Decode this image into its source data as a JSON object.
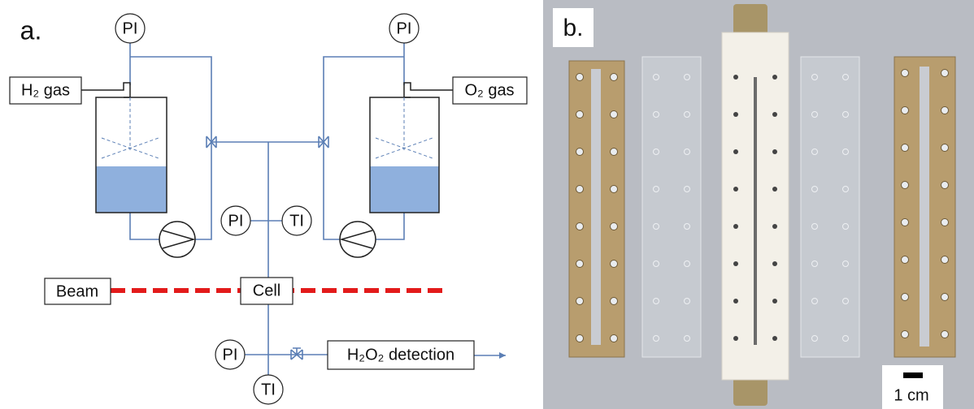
{
  "panel_a": {
    "label": "a.",
    "h2_gas": "H₂ gas",
    "o2_gas": "O₂ gas",
    "beam": "Beam",
    "cell": "Cell",
    "detection": "H₂O₂ detection",
    "gauges": [
      "PI",
      "PI",
      "PI",
      "TI",
      "PI",
      "TI"
    ]
  },
  "panel_b": {
    "label": "b.",
    "scale_bar": "1 cm"
  }
}
